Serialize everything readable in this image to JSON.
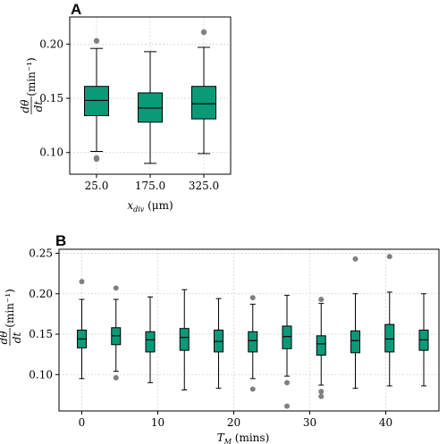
{
  "chart_data": [
    {
      "panel": "A",
      "type": "box",
      "xlabel": "x_div (μm)",
      "ylabel": "dθ/dt (min⁻¹)",
      "ylim": [
        0.08,
        0.225
      ],
      "yticks": [
        0.1,
        0.15,
        0.2
      ],
      "ytick_labels": [
        "0.10",
        "0.15",
        "0.20"
      ],
      "grid": true,
      "color": "#0a9a78",
      "categories": [
        "25.0",
        "175.0",
        "325.0"
      ],
      "boxes": [
        {
          "label": "25.0",
          "whisker_low": 0.101,
          "q1": 0.134,
          "median": 0.148,
          "q3": 0.161,
          "whisker_high": 0.196,
          "outliers": [
            0.203,
            0.095,
            0.094
          ]
        },
        {
          "label": "175.0",
          "whisker_low": 0.09,
          "q1": 0.128,
          "median": 0.141,
          "q3": 0.155,
          "whisker_high": 0.193,
          "outliers": []
        },
        {
          "label": "325.0",
          "whisker_low": 0.099,
          "q1": 0.131,
          "median": 0.145,
          "q3": 0.161,
          "whisker_high": 0.197,
          "outliers": [
            0.211
          ]
        }
      ]
    },
    {
      "panel": "B",
      "type": "box",
      "xlabel": "T_M (mins)",
      "ylabel": "dθ/dt (min⁻¹)",
      "xlim": [
        -3,
        47
      ],
      "xticks": [
        0,
        10,
        20,
        30,
        40
      ],
      "ylim": [
        0.055,
        0.255
      ],
      "yticks": [
        0.1,
        0.15,
        0.2,
        0.25
      ],
      "ytick_labels": [
        "0.10",
        "0.15",
        "0.20",
        "0.25"
      ],
      "grid": true,
      "color": "#0a9a78",
      "boxes": [
        {
          "x": 0.0,
          "whisker_low": 0.095,
          "q1": 0.133,
          "median": 0.144,
          "q3": 0.155,
          "whisker_high": 0.193,
          "outliers": [
            0.215
          ]
        },
        {
          "x": 4.5,
          "whisker_low": 0.104,
          "q1": 0.137,
          "median": 0.148,
          "q3": 0.158,
          "whisker_high": 0.193,
          "outliers": [
            0.207,
            0.096
          ]
        },
        {
          "x": 9.0,
          "whisker_low": 0.09,
          "q1": 0.128,
          "median": 0.143,
          "q3": 0.153,
          "whisker_high": 0.196,
          "outliers": []
        },
        {
          "x": 13.5,
          "whisker_low": 0.081,
          "q1": 0.13,
          "median": 0.146,
          "q3": 0.157,
          "whisker_high": 0.205,
          "outliers": []
        },
        {
          "x": 18.0,
          "whisker_low": 0.083,
          "q1": 0.128,
          "median": 0.141,
          "q3": 0.155,
          "whisker_high": 0.194,
          "outliers": []
        },
        {
          "x": 22.5,
          "whisker_low": 0.095,
          "q1": 0.128,
          "median": 0.142,
          "q3": 0.153,
          "whisker_high": 0.187,
          "outliers": [
            0.195,
            0.082
          ]
        },
        {
          "x": 27.0,
          "whisker_low": 0.098,
          "q1": 0.132,
          "median": 0.147,
          "q3": 0.16,
          "whisker_high": 0.198,
          "outliers": [
            0.09,
            0.061
          ]
        },
        {
          "x": 31.5,
          "whisker_low": 0.087,
          "q1": 0.124,
          "median": 0.138,
          "q3": 0.148,
          "whisker_high": 0.188,
          "outliers": [
            0.193,
            0.079,
            0.073
          ]
        },
        {
          "x": 36.0,
          "whisker_low": 0.083,
          "q1": 0.127,
          "median": 0.142,
          "q3": 0.154,
          "whisker_high": 0.2,
          "outliers": [
            0.243
          ]
        },
        {
          "x": 40.5,
          "whisker_low": 0.086,
          "q1": 0.128,
          "median": 0.144,
          "q3": 0.162,
          "whisker_high": 0.202,
          "outliers": [
            0.246
          ]
        },
        {
          "x": 45.0,
          "whisker_low": 0.086,
          "q1": 0.13,
          "median": 0.143,
          "q3": 0.155,
          "whisker_high": 0.2,
          "outliers": []
        }
      ]
    }
  ],
  "labels": {
    "panel_a": "A",
    "panel_b": "B",
    "a_xlabel_var": "x",
    "a_xlabel_sub": "div",
    "a_xlabel_unit": " (μm)",
    "b_xlabel_var": "T",
    "b_xlabel_sub": "M",
    "b_xlabel_unit": " (mins)",
    "ylabel_num": "dθ",
    "ylabel_den": "dt",
    "ylabel_unit": "(min⁻¹)"
  }
}
